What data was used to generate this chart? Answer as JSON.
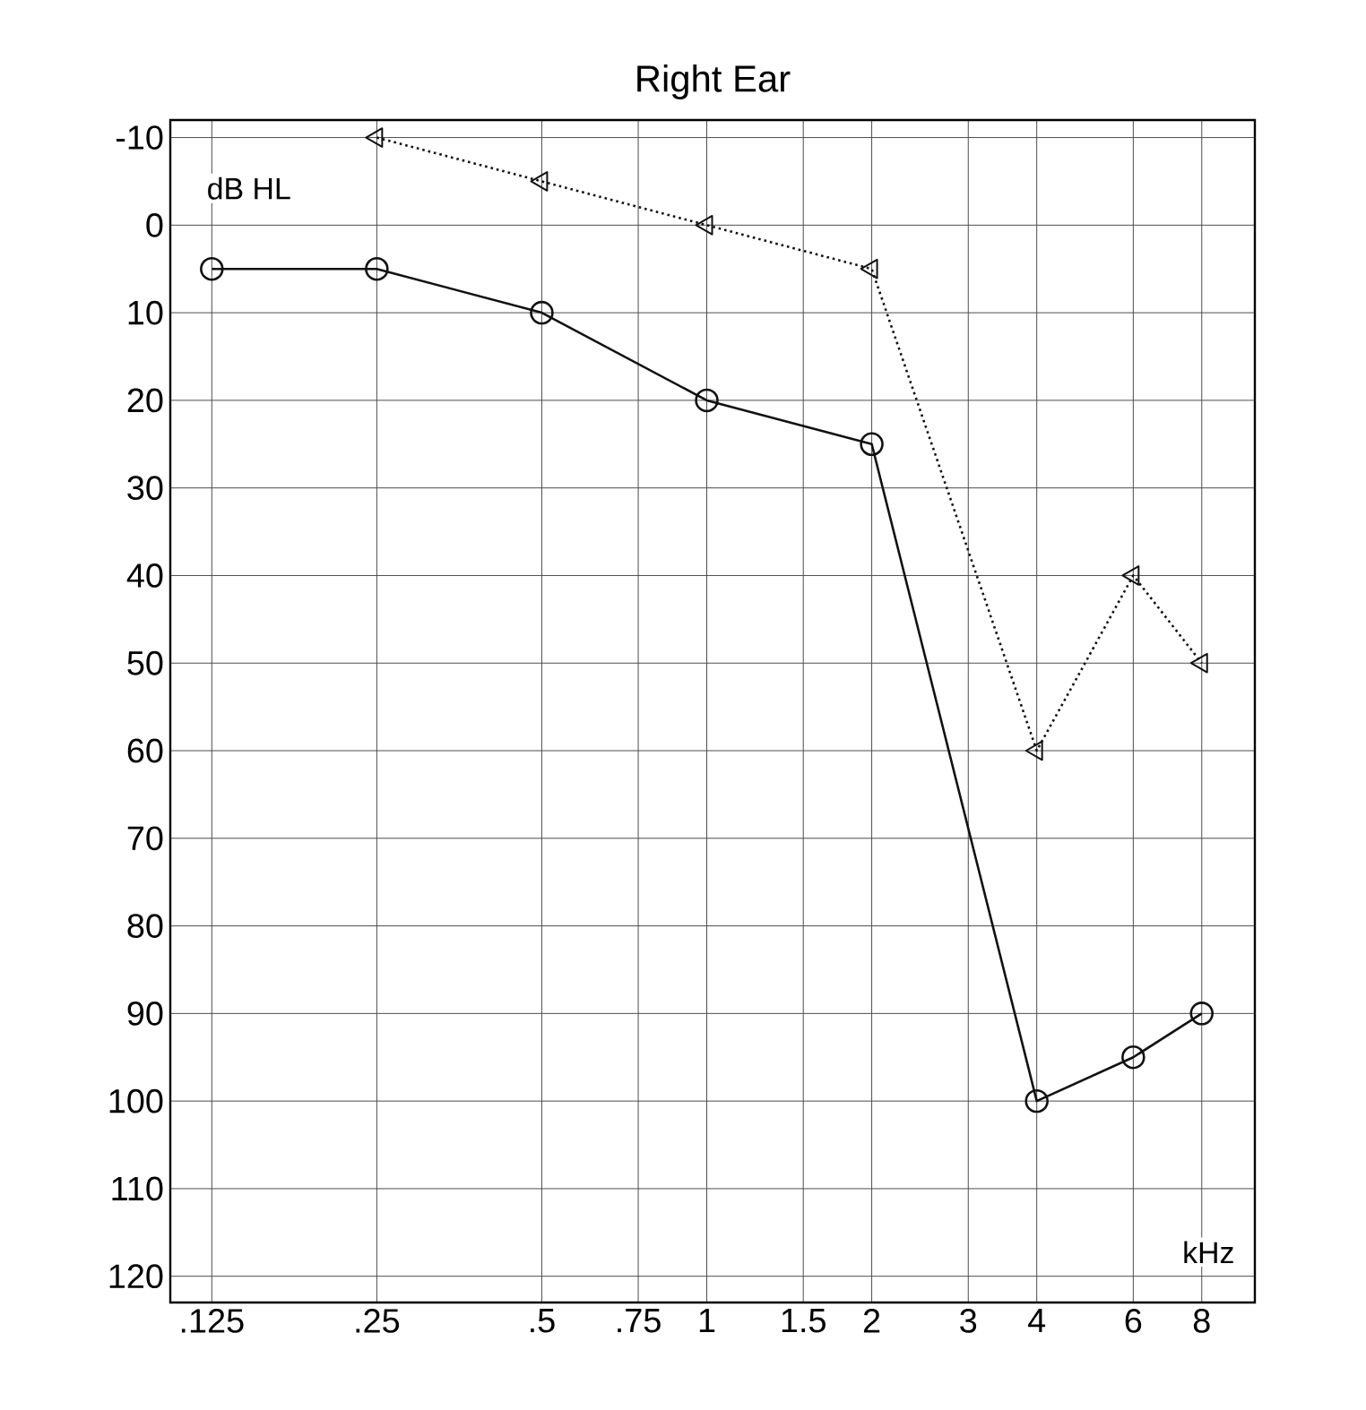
{
  "chart_data": {
    "type": "line",
    "title": "Right Ear",
    "xlabel": "kHz",
    "ylabel": "dB HL",
    "x": [
      0.125,
      0.25,
      0.5,
      1,
      2,
      4,
      6,
      8
    ],
    "series": [
      {
        "color": "#111111",
        "values": [
          5,
          5,
          10,
          20,
          25,
          100,
          95,
          90
        ],
        "marker": "circle",
        "line_style": "solid"
      },
      {
        "color": "#111111",
        "x": [
          0.25,
          0.5,
          1,
          2,
          4,
          6,
          8
        ],
        "values": [
          -10,
          -5,
          0,
          5,
          60,
          40,
          50
        ],
        "marker": "triangle",
        "line_style": "dotted"
      }
    ],
    "log": "x",
    "xlim": [
      0.105,
      10
    ],
    "ylim": [
      123,
      -12
    ],
    "xticks": [
      {
        "value": 0.125,
        "label": ".125"
      },
      {
        "value": 0.25,
        "label": ".25"
      },
      {
        "value": 0.5,
        "label": ".5"
      },
      {
        "value": 0.75,
        "label": ".75"
      },
      1,
      1.5,
      2,
      3,
      4,
      6,
      8
    ],
    "yticks": [
      -10,
      0,
      10,
      20,
      30,
      40,
      50,
      60,
      70,
      80,
      90,
      100,
      110,
      120
    ],
    "grid": true
  }
}
